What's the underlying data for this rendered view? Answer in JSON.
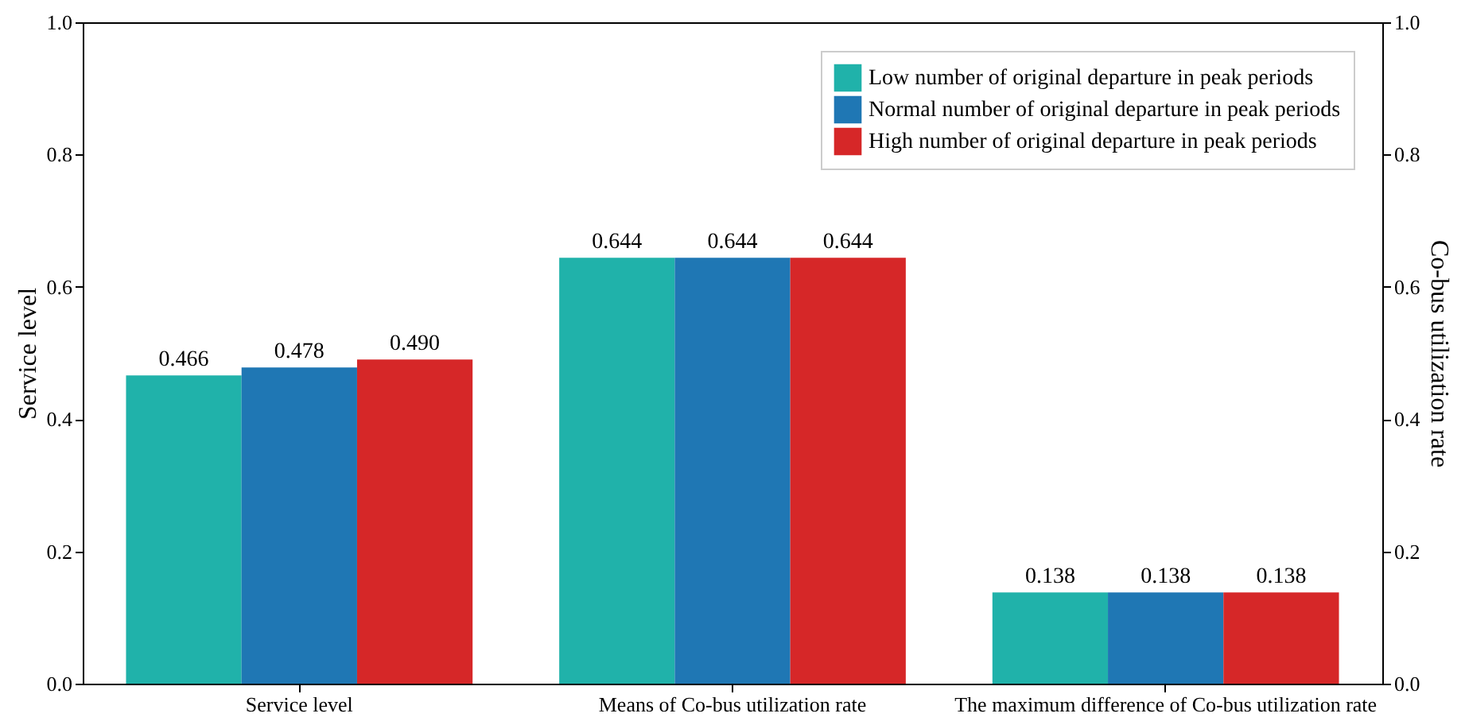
{
  "chart_data": {
    "type": "bar",
    "ylabel": "Service level",
    "y2label": "Co-bus utilization rate",
    "categories": [
      "Service level",
      "Means of Co-bus utilization rate",
      "The maximum difference of Co-bus utilization rate"
    ],
    "series": [
      {
        "name": "Low number of original departure in peak periods",
        "color": "#20b2aa",
        "values": [
          0.466,
          0.644,
          0.138
        ],
        "value_labels": [
          "0.466",
          "0.644",
          "0.138"
        ]
      },
      {
        "name": "Normal number of original departure in peak periods",
        "color": "#1f77b4",
        "values": [
          0.478,
          0.644,
          0.138
        ],
        "value_labels": [
          "0.478",
          "0.644",
          "0.138"
        ]
      },
      {
        "name": "High number of original departure in peak periods",
        "color": "#d62728",
        "values": [
          0.49,
          0.644,
          0.138
        ],
        "value_labels": [
          "0.490",
          "0.644",
          "0.138"
        ]
      }
    ],
    "ylim": [
      0,
      1
    ],
    "yticks": [
      {
        "value": 0,
        "label": "0.0"
      },
      0.2,
      0.4,
      0.6,
      0.8,
      {
        "value": 1,
        "label": "1.0"
      }
    ],
    "y2lim": [
      0,
      1
    ],
    "y2ticks": [
      {
        "value": 0,
        "label": "0.0"
      },
      0.2,
      0.4,
      0.6,
      0.8,
      {
        "value": 1,
        "label": "1.0"
      }
    ],
    "legend": "top right",
    "grid": false
  }
}
